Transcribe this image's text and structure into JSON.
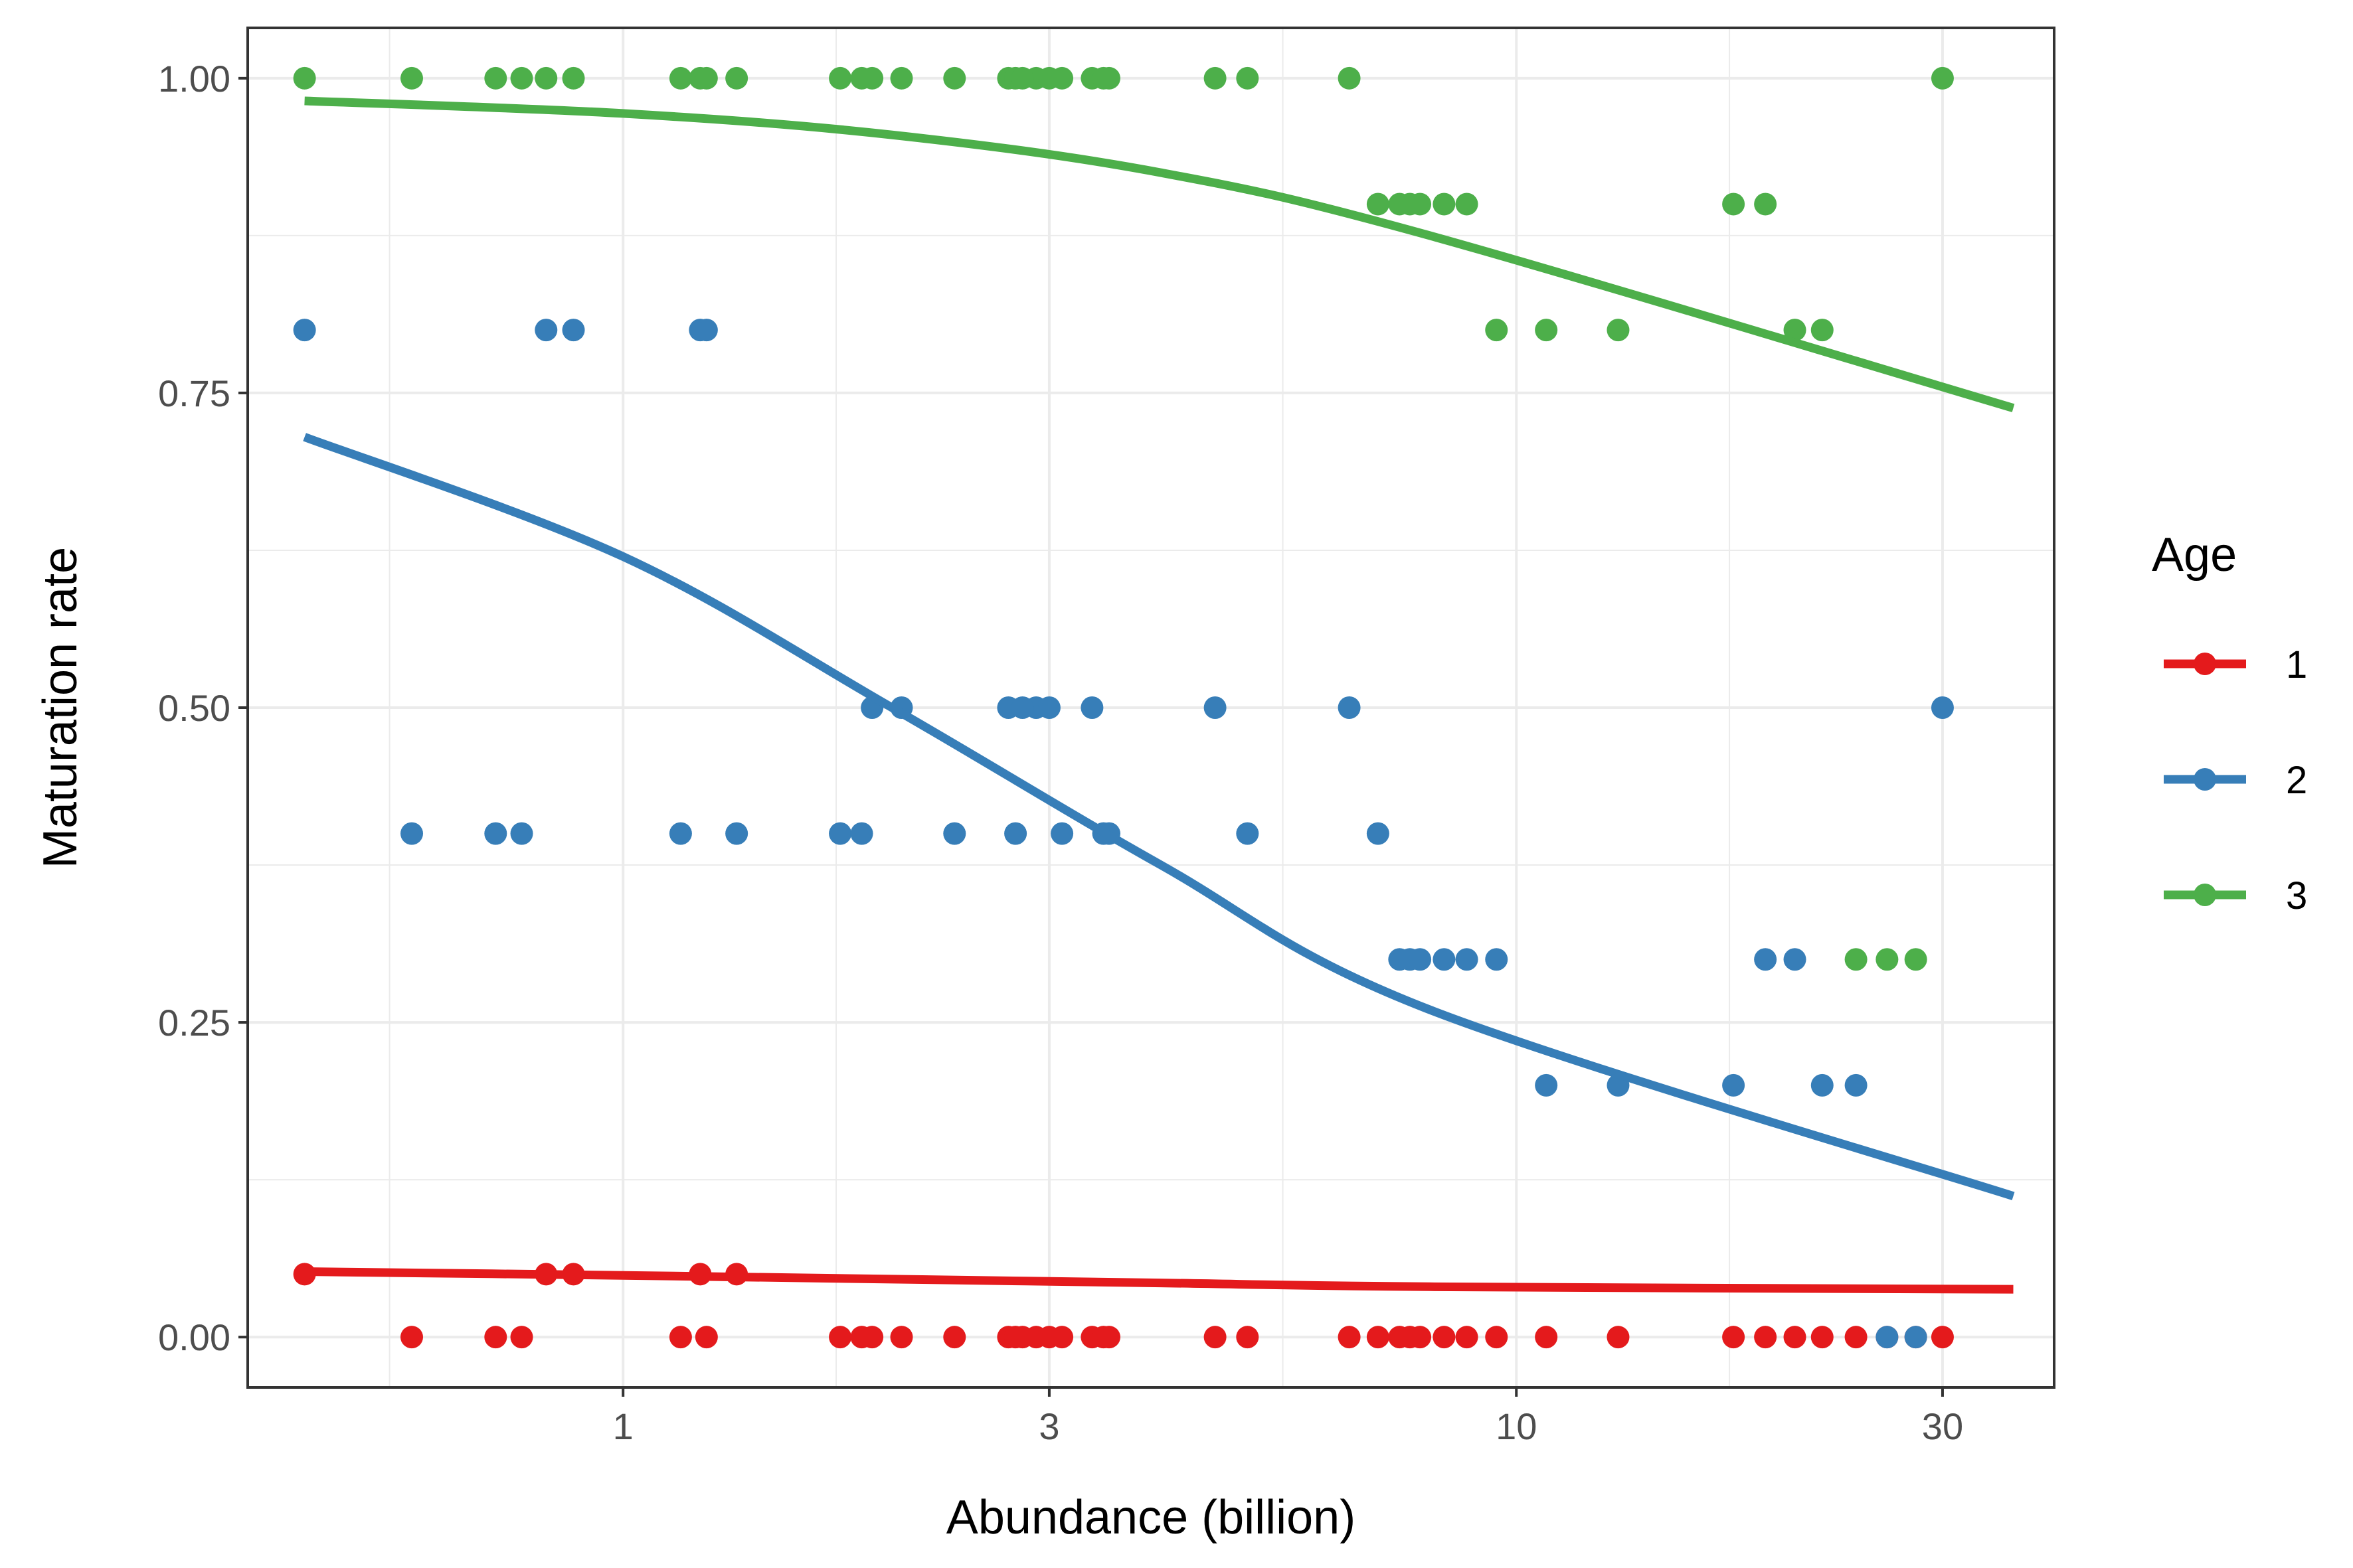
{
  "chart_data": {
    "type": "scatter",
    "xlabel": "Abundance (billion)",
    "ylabel": "Maturation rate",
    "x_scale": "log10",
    "xlim": [
      0.38,
      40
    ],
    "ylim": [
      -0.04,
      1.04
    ],
    "x_ticks": [
      1,
      3,
      10,
      30
    ],
    "x_tick_labels": [
      "1",
      "3",
      "10",
      "30"
    ],
    "y_ticks": [
      0,
      0.25,
      0.5,
      0.75,
      1
    ],
    "y_tick_labels": [
      "0.00",
      "0.25",
      "0.50",
      "0.75",
      "1.00"
    ],
    "grid": true,
    "legend": {
      "title": "Age",
      "position": "right"
    },
    "series": [
      {
        "name": "1",
        "color": "#E41A1C",
        "x": [
          0.44,
          0.58,
          0.72,
          0.77,
          0.82,
          0.88,
          1.16,
          1.22,
          1.24,
          1.34,
          1.75,
          1.85,
          1.9,
          2.05,
          2.35,
          2.7,
          2.75,
          2.9,
          2.8,
          3.0,
          3.1,
          3.35,
          3.45,
          3.5,
          4.6,
          5.0,
          6.5,
          7.0,
          7.4,
          7.6,
          7.8,
          8.3,
          8.8,
          9.5,
          10.8,
          13.0,
          17.5,
          19.0,
          20.5,
          22.0,
          24.0,
          26.0,
          28.0,
          30.0
        ],
        "y": [
          0.05,
          0,
          0,
          0,
          0.05,
          0.05,
          0,
          0.05,
          0,
          0.05,
          0,
          0,
          0,
          0,
          0,
          0,
          0,
          0,
          0,
          0,
          0,
          0,
          0,
          0,
          0,
          0,
          0,
          0,
          0,
          0,
          0,
          0,
          0,
          0,
          0,
          0,
          0,
          0,
          0,
          0,
          0,
          0,
          0,
          0
        ],
        "fit_y": [
          0.052,
          0.049,
          0.046,
          0.043,
          0.04,
          0.038
        ]
      },
      {
        "name": "2",
        "color": "#377EB8",
        "x": [
          0.44,
          0.58,
          0.72,
          0.77,
          0.82,
          0.88,
          1.16,
          1.22,
          1.24,
          1.34,
          1.75,
          1.85,
          1.9,
          2.05,
          2.35,
          2.7,
          2.75,
          2.9,
          2.8,
          3.0,
          3.1,
          3.35,
          3.45,
          3.5,
          4.6,
          5.0,
          6.5,
          7.0,
          7.4,
          7.6,
          7.8,
          8.3,
          8.8,
          9.5,
          10.8,
          13.0,
          17.5,
          19.0,
          20.5,
          22.0,
          24.0,
          26.0,
          28.0,
          30.0
        ],
        "y": [
          0.8,
          0.4,
          0.4,
          0.4,
          0.8,
          0.8,
          0.4,
          0.8,
          0.8,
          0.4,
          0.4,
          0.4,
          0.5,
          0.5,
          0.4,
          0.5,
          0.4,
          0.5,
          0.5,
          0.5,
          0.4,
          0.5,
          0.4,
          0.4,
          0.5,
          0.4,
          0.5,
          0.4,
          0.3,
          0.3,
          0.3,
          0.3,
          0.3,
          0.3,
          0.2,
          0.2,
          0.2,
          0.3,
          0.3,
          0.2,
          0.2,
          0,
          0,
          0.5
        ],
        "fit_y": [
          0.715,
          0.62,
          0.5,
          0.375,
          0.26,
          0.112
        ]
      },
      {
        "name": "3",
        "color": "#4DAF4A",
        "x": [
          0.44,
          0.58,
          0.72,
          0.77,
          0.82,
          0.88,
          1.16,
          1.22,
          1.24,
          1.34,
          1.75,
          1.85,
          1.9,
          2.05,
          2.35,
          2.7,
          2.75,
          2.9,
          2.8,
          3.0,
          3.1,
          3.35,
          3.45,
          3.5,
          4.6,
          5.0,
          6.5,
          7.0,
          7.4,
          7.6,
          7.8,
          8.3,
          8.8,
          9.5,
          10.8,
          13.0,
          17.5,
          19.0,
          20.5,
          22.0,
          24.0,
          26.0,
          28.0,
          30.0
        ],
        "y": [
          1,
          1,
          1,
          1,
          1,
          1,
          1,
          1,
          1,
          1,
          1,
          1,
          1,
          1,
          1,
          1,
          1,
          1,
          1,
          1,
          1,
          1,
          1,
          1,
          1,
          1,
          1,
          0.9,
          0.9,
          0.9,
          0.9,
          0.9,
          0.9,
          0.8,
          0.8,
          0.8,
          0.9,
          0.9,
          0.8,
          0.8,
          0.3,
          0.3,
          0.3,
          1
        ],
        "fit_y": [
          0.982,
          0.972,
          0.955,
          0.925,
          0.875,
          0.738
        ]
      }
    ],
    "fit_x": [
      0.44,
      1,
      2,
      4,
      8,
      36
    ]
  }
}
